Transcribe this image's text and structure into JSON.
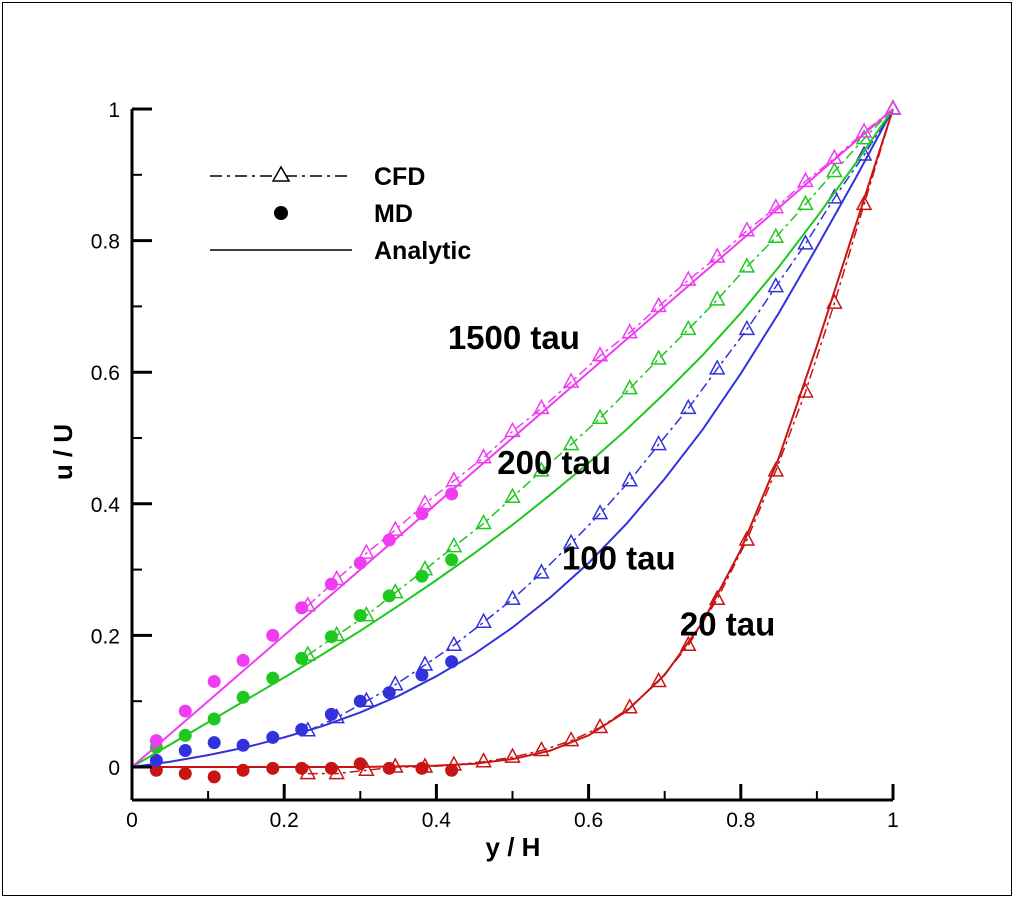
{
  "chart_data": {
    "type": "line",
    "xlabel": "y / H",
    "ylabel": "u / U",
    "xlim": [
      0,
      1
    ],
    "ylim": [
      -0.05,
      1
    ],
    "xticks": [
      0,
      0.2,
      0.4,
      0.6,
      0.8,
      1
    ],
    "yticks": [
      0,
      0.2,
      0.4,
      0.6,
      0.8,
      1
    ],
    "xtick_labels": [
      "0",
      "0.2",
      "0.4",
      "0.6",
      "0.8",
      "1"
    ],
    "ytick_labels": [
      "0",
      "0.2",
      "0.4",
      "0.6",
      "0.8",
      "1"
    ],
    "grid": false,
    "legend": {
      "position": "top-left",
      "entries": [
        {
          "label": "CFD",
          "style": "dash-dot line with open triangles"
        },
        {
          "label": "MD",
          "style": "filled circles"
        },
        {
          "label": "Analytic",
          "style": "solid line"
        }
      ]
    },
    "series": [
      {
        "name": "20 tau",
        "color": "#c81414",
        "label_at": [
          0.72,
          0.2
        ],
        "analytic": {
          "x": [
            0,
            0.05,
            0.1,
            0.15,
            0.2,
            0.25,
            0.3,
            0.35,
            0.4,
            0.45,
            0.5,
            0.55,
            0.6,
            0.65,
            0.7,
            0.75,
            0.8,
            0.85,
            0.9,
            0.95,
            1.0
          ],
          "y": [
            0,
            0,
            0,
            0,
            0,
            0,
            0,
            0.001,
            0.002,
            0.005,
            0.012,
            0.025,
            0.048,
            0.085,
            0.14,
            0.22,
            0.33,
            0.47,
            0.64,
            0.82,
            1.0
          ]
        },
        "cfd": {
          "x": [
            0.231,
            0.269,
            0.308,
            0.346,
            0.385,
            0.423,
            0.462,
            0.5,
            0.538,
            0.577,
            0.615,
            0.654,
            0.692,
            0.731,
            0.769,
            0.808,
            0.846,
            0.885,
            0.923,
            0.962,
            1.0
          ],
          "y": [
            -0.01,
            -0.01,
            -0.005,
            0,
            0,
            0.003,
            0.008,
            0.015,
            0.025,
            0.04,
            0.06,
            0.09,
            0.13,
            0.185,
            0.255,
            0.345,
            0.45,
            0.57,
            0.705,
            0.855,
            1.0
          ]
        },
        "md": {
          "x": [
            0.032,
            0.07,
            0.108,
            0.146,
            0.185,
            0.223,
            0.262,
            0.3,
            0.338,
            0.381,
            0.42
          ],
          "y": [
            -0.005,
            -0.01,
            -0.015,
            -0.005,
            -0.002,
            -0.002,
            -0.002,
            0.005,
            -0.002,
            -0.002,
            -0.005
          ]
        }
      },
      {
        "name": "100 tau",
        "color": "#3232dc",
        "label_at": [
          0.565,
          0.3
        ],
        "analytic": {
          "x": [
            0,
            0.05,
            0.1,
            0.15,
            0.2,
            0.25,
            0.3,
            0.35,
            0.4,
            0.45,
            0.5,
            0.55,
            0.6,
            0.65,
            0.7,
            0.75,
            0.8,
            0.85,
            0.9,
            0.95,
            1.0
          ],
          "y": [
            0,
            0.008,
            0.018,
            0.03,
            0.045,
            0.062,
            0.083,
            0.108,
            0.138,
            0.172,
            0.212,
            0.258,
            0.31,
            0.37,
            0.438,
            0.513,
            0.598,
            0.69,
            0.79,
            0.893,
            1.0
          ]
        },
        "cfd": {
          "x": [
            0.231,
            0.269,
            0.308,
            0.346,
            0.385,
            0.423,
            0.462,
            0.5,
            0.538,
            0.577,
            0.615,
            0.654,
            0.692,
            0.731,
            0.769,
            0.808,
            0.846,
            0.885,
            0.923,
            0.962,
            1.0
          ],
          "y": [
            0.055,
            0.075,
            0.1,
            0.125,
            0.155,
            0.185,
            0.22,
            0.255,
            0.295,
            0.34,
            0.385,
            0.435,
            0.49,
            0.545,
            0.605,
            0.665,
            0.73,
            0.795,
            0.865,
            0.93,
            1.0
          ]
        },
        "md": {
          "x": [
            0.032,
            0.07,
            0.108,
            0.146,
            0.185,
            0.223,
            0.262,
            0.3,
            0.338,
            0.381,
            0.42
          ],
          "y": [
            0.01,
            0.025,
            0.037,
            0.033,
            0.045,
            0.057,
            0.08,
            0.1,
            0.113,
            0.14,
            0.16
          ]
        }
      },
      {
        "name": "200 tau",
        "color": "#1ec81e",
        "label_at": [
          0.48,
          0.445
        ],
        "analytic": {
          "x": [
            0,
            0.05,
            0.1,
            0.15,
            0.2,
            0.25,
            0.3,
            0.35,
            0.4,
            0.45,
            0.5,
            0.55,
            0.6,
            0.65,
            0.7,
            0.75,
            0.8,
            0.85,
            0.9,
            0.95,
            1.0
          ],
          "y": [
            0,
            0.034,
            0.068,
            0.102,
            0.136,
            0.171,
            0.207,
            0.245,
            0.284,
            0.325,
            0.368,
            0.414,
            0.462,
            0.513,
            0.568,
            0.626,
            0.69,
            0.76,
            0.836,
            0.916,
            1.0
          ]
        },
        "cfd": {
          "x": [
            0.231,
            0.269,
            0.308,
            0.346,
            0.385,
            0.423,
            0.462,
            0.5,
            0.538,
            0.577,
            0.615,
            0.654,
            0.692,
            0.731,
            0.769,
            0.808,
            0.846,
            0.885,
            0.923,
            0.962,
            1.0
          ],
          "y": [
            0.17,
            0.2,
            0.23,
            0.265,
            0.3,
            0.335,
            0.37,
            0.41,
            0.45,
            0.49,
            0.53,
            0.575,
            0.62,
            0.665,
            0.71,
            0.76,
            0.805,
            0.855,
            0.905,
            0.955,
            1.0
          ]
        },
        "md": {
          "x": [
            0.032,
            0.07,
            0.108,
            0.146,
            0.185,
            0.223,
            0.262,
            0.3,
            0.338,
            0.381,
            0.42
          ],
          "y": [
            0.03,
            0.048,
            0.073,
            0.106,
            0.135,
            0.165,
            0.198,
            0.23,
            0.26,
            0.29,
            0.315
          ]
        }
      },
      {
        "name": "1500 tau",
        "color": "#f03cf0",
        "label_at": [
          0.415,
          0.635
        ],
        "analytic": {
          "x": [
            0,
            0.05,
            0.1,
            0.15,
            0.2,
            0.25,
            0.3,
            0.35,
            0.4,
            0.45,
            0.5,
            0.55,
            0.6,
            0.65,
            0.7,
            0.75,
            0.8,
            0.85,
            0.9,
            0.95,
            1.0
          ],
          "y": [
            0,
            0.05,
            0.1,
            0.15,
            0.2,
            0.25,
            0.3,
            0.35,
            0.4,
            0.45,
            0.5,
            0.55,
            0.6,
            0.65,
            0.7,
            0.75,
            0.8,
            0.85,
            0.9,
            0.95,
            1.0
          ]
        },
        "cfd": {
          "x": [
            0.231,
            0.269,
            0.308,
            0.346,
            0.385,
            0.423,
            0.462,
            0.5,
            0.538,
            0.577,
            0.615,
            0.654,
            0.692,
            0.731,
            0.769,
            0.808,
            0.846,
            0.885,
            0.923,
            0.962,
            1.0
          ],
          "y": [
            0.245,
            0.285,
            0.325,
            0.36,
            0.4,
            0.435,
            0.47,
            0.51,
            0.545,
            0.585,
            0.625,
            0.66,
            0.7,
            0.74,
            0.775,
            0.815,
            0.85,
            0.89,
            0.925,
            0.965,
            1.0
          ]
        },
        "md": {
          "x": [
            0.032,
            0.07,
            0.108,
            0.146,
            0.185,
            0.223,
            0.262,
            0.3,
            0.338,
            0.381,
            0.42
          ],
          "y": [
            0.04,
            0.085,
            0.13,
            0.162,
            0.2,
            0.242,
            0.278,
            0.31,
            0.345,
            0.385,
            0.415
          ]
        }
      }
    ]
  }
}
